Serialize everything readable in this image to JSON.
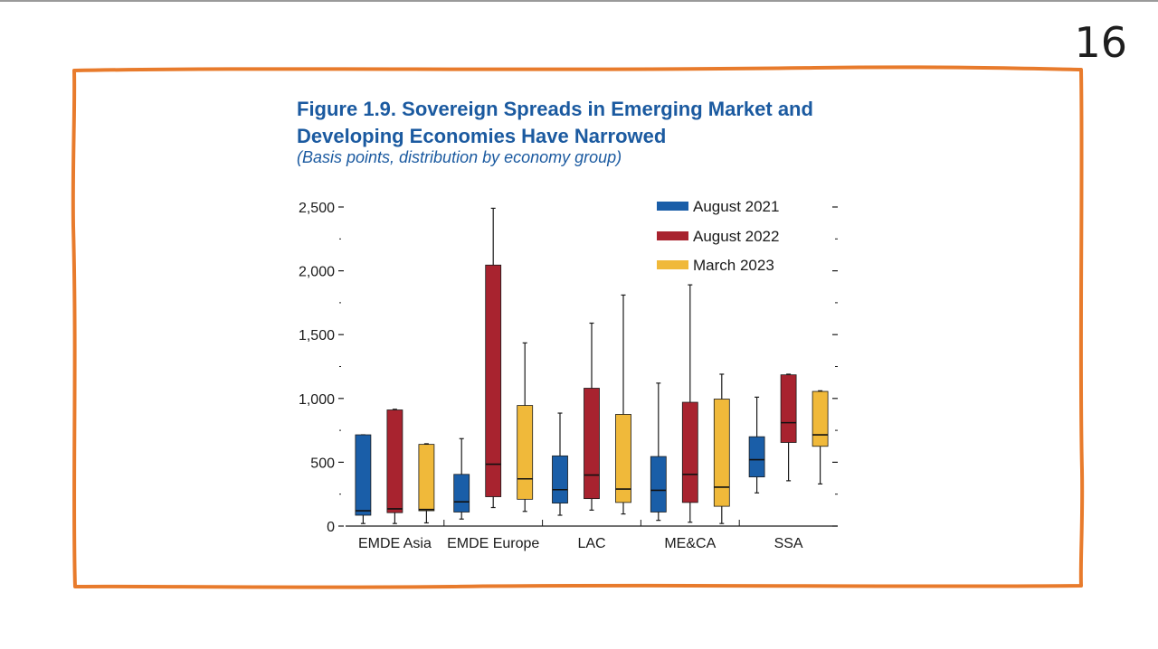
{
  "slide": {
    "number": "16"
  },
  "colors": {
    "frame": "#e87b2c",
    "title": "#1b5aa0",
    "blue": "#1a5ea8",
    "red": "#a8232f",
    "yellow": "#f0b93a"
  },
  "chart_data": {
    "type": "boxplot",
    "title_line1": "Figure 1.9.  Sovereign Spreads in Emerging Market and",
    "title_line2": "Developing Economies Have Narrowed",
    "subtitle": "(Basis points, distribution by economy group)",
    "ylim": [
      0,
      2500
    ],
    "yticks": [
      0,
      500,
      1000,
      1500,
      2000,
      2500
    ],
    "ytick_labels": [
      "0",
      "500",
      "1,000",
      "1,500",
      "2,000",
      "2,500"
    ],
    "legend_position": "top-right",
    "categories": [
      "EMDE Asia",
      "EMDE Europe",
      "LAC",
      "ME&CA",
      "SSA"
    ],
    "series": [
      {
        "name": "August 2021",
        "color": "#1a5ea8",
        "boxes": [
          {
            "min": 20,
            "q1": 85,
            "median": 120,
            "q3": 715,
            "max": 715
          },
          {
            "min": 55,
            "q1": 110,
            "median": 190,
            "q3": 405,
            "max": 685
          },
          {
            "min": 85,
            "q1": 180,
            "median": 285,
            "q3": 550,
            "max": 885
          },
          {
            "min": 45,
            "q1": 110,
            "median": 280,
            "q3": 545,
            "max": 1120
          },
          {
            "min": 260,
            "q1": 385,
            "median": 520,
            "q3": 700,
            "max": 1010
          }
        ]
      },
      {
        "name": "August 2022",
        "color": "#a8232f",
        "boxes": [
          {
            "min": 20,
            "q1": 105,
            "median": 135,
            "q3": 910,
            "max": 915
          },
          {
            "min": 145,
            "q1": 230,
            "median": 485,
            "q3": 2045,
            "max": 2490
          },
          {
            "min": 125,
            "q1": 215,
            "median": 400,
            "q3": 1080,
            "max": 1590
          },
          {
            "min": 30,
            "q1": 185,
            "median": 405,
            "q3": 970,
            "max": 1890
          },
          {
            "min": 355,
            "q1": 655,
            "median": 810,
            "q3": 1185,
            "max": 1190
          }
        ]
      },
      {
        "name": "March 2023",
        "color": "#f0b93a",
        "boxes": [
          {
            "min": 25,
            "q1": 120,
            "median": 130,
            "q3": 640,
            "max": 645
          },
          {
            "min": 115,
            "q1": 210,
            "median": 370,
            "q3": 945,
            "max": 1435
          },
          {
            "min": 95,
            "q1": 185,
            "median": 290,
            "q3": 875,
            "max": 1810
          },
          {
            "min": 20,
            "q1": 155,
            "median": 305,
            "q3": 995,
            "max": 1190
          },
          {
            "min": 330,
            "q1": 625,
            "median": 715,
            "q3": 1055,
            "max": 1060
          }
        ]
      }
    ]
  }
}
